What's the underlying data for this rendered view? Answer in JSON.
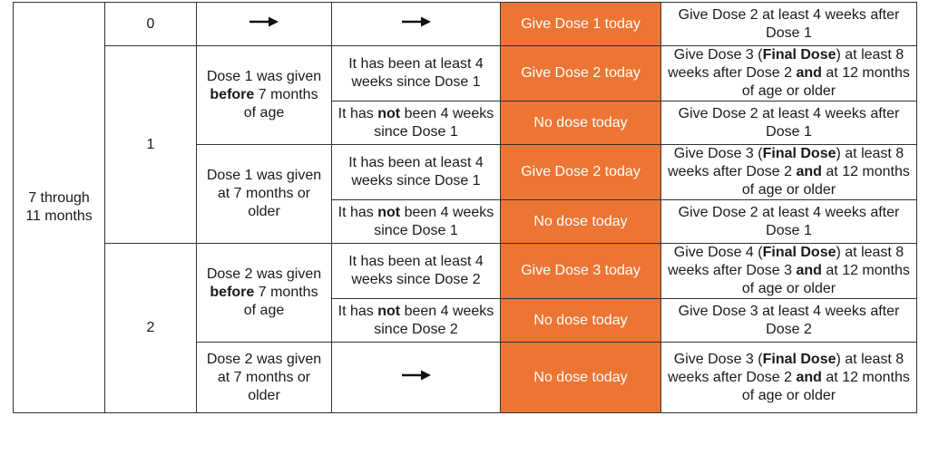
{
  "age_group": "7 through\n11 months",
  "rows": {
    "d0": {
      "doses": "0",
      "action": "Give Dose 1 today",
      "next_prefix": "Give Dose 2 at least 4 weeks after Dose 1"
    },
    "d1": {
      "doses": "1",
      "g1": {
        "cond_pre": "Dose 1 was given ",
        "cond_bold": "before",
        "cond_post": " 7 months of age",
        "a": {
          "interval": "It has been at least 4 weeks since Dose 1",
          "action": "Give Dose 2 today",
          "next_pre": "Give Dose 3 (",
          "next_bold1": "Final Dose",
          "next_mid": ") at least 8 weeks after Dose 2 ",
          "next_bold2": "and",
          "next_post": " at 12 months of age or older"
        },
        "b": {
          "interval_pre": "It has ",
          "interval_bold": "not",
          "interval_post": " been 4 weeks since Dose 1",
          "action": "No dose today",
          "next": "Give Dose 2 at least 4 weeks after Dose 1"
        }
      },
      "g2": {
        "cond": "Dose 1 was given at 7 months or older",
        "a": {
          "interval": "It has been at least 4 weeks since Dose 1",
          "action": "Give Dose 2 today",
          "next_pre": "Give Dose 3 (",
          "next_bold1": "Final Dose",
          "next_mid": ") at least 8 weeks after Dose 2 ",
          "next_bold2": "and",
          "next_post": " at 12 months of age or older"
        },
        "b": {
          "interval_pre": "It has ",
          "interval_bold": "not",
          "interval_post": " been 4 weeks since Dose 1",
          "action": "No dose today",
          "next": "Give Dose 2 at least 4 weeks after Dose 1"
        }
      }
    },
    "d2": {
      "doses": "2",
      "g1": {
        "cond_pre": "Dose 2 was given ",
        "cond_bold": "before",
        "cond_post": " 7 months of age",
        "a": {
          "interval": "It has been at least 4 weeks since Dose 2",
          "action": "Give Dose 3 today",
          "next_pre": "Give Dose 4 (",
          "next_bold1": "Final Dose",
          "next_mid": ") at least 8 weeks after Dose 3 ",
          "next_bold2": "and",
          "next_post": " at 12 months of age or older"
        },
        "b": {
          "interval_pre": "It has ",
          "interval_bold": "not",
          "interval_post": " been 4 weeks since Dose 2",
          "action": "No dose today",
          "next": "Give Dose 3 at least 4 weeks after Dose 2"
        }
      },
      "g2": {
        "cond": "Dose 2 was given at 7 months or older",
        "action": "No dose today",
        "next_pre": "Give Dose 3 (",
        "next_bold1": "Final Dose",
        "next_mid": ") at least 8 weeks after Dose 2 ",
        "next_bold2": "and",
        "next_post": " at 12 months of age or older"
      }
    }
  },
  "colors": {
    "action_fill": "#ec7534",
    "border": "#333333"
  },
  "icons": {
    "arrow": "arrow-right-icon"
  }
}
